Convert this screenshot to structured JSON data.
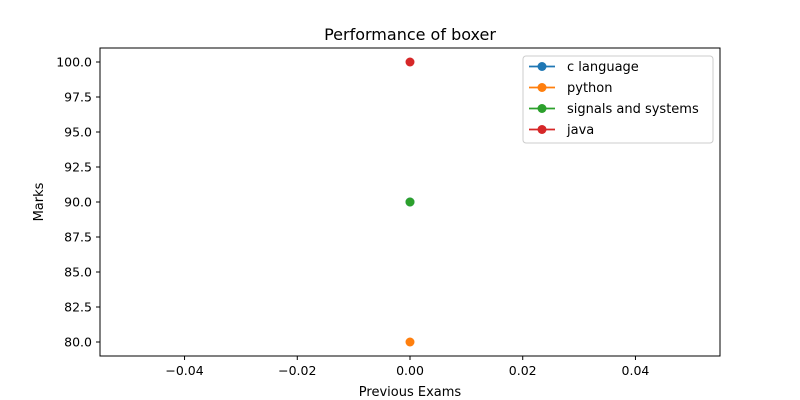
{
  "chart_data": {
    "type": "line",
    "title": "Performance of boxer",
    "xlabel": "Previous Exams",
    "ylabel": "Marks",
    "xlim": [
      -0.055,
      0.055
    ],
    "ylim": [
      79.0,
      101.0
    ],
    "x_ticks": [
      -0.04,
      -0.02,
      0.0,
      0.02,
      0.04
    ],
    "x_tick_labels": [
      "−0.04",
      "−0.02",
      "0.00",
      "0.02",
      "0.04"
    ],
    "y_ticks": [
      80.0,
      82.5,
      85.0,
      87.5,
      90.0,
      92.5,
      95.0,
      97.5,
      100.0
    ],
    "y_tick_labels": [
      "80.0",
      "82.5",
      "85.0",
      "87.5",
      "90.0",
      "92.5",
      "95.0",
      "97.5",
      "100.0"
    ],
    "grid": false,
    "legend_position": "top-right",
    "series": [
      {
        "name": "c language",
        "color": "#1f77b4",
        "x": [
          0.0
        ],
        "y": [
          90.0
        ]
      },
      {
        "name": "python",
        "color": "#ff7f0e",
        "x": [
          0.0
        ],
        "y": [
          80.0
        ]
      },
      {
        "name": "signals and systems",
        "color": "#2ca02c",
        "x": [
          0.0
        ],
        "y": [
          90.0
        ]
      },
      {
        "name": "java",
        "color": "#d62728",
        "x": [
          0.0
        ],
        "y": [
          100.0
        ]
      }
    ]
  }
}
